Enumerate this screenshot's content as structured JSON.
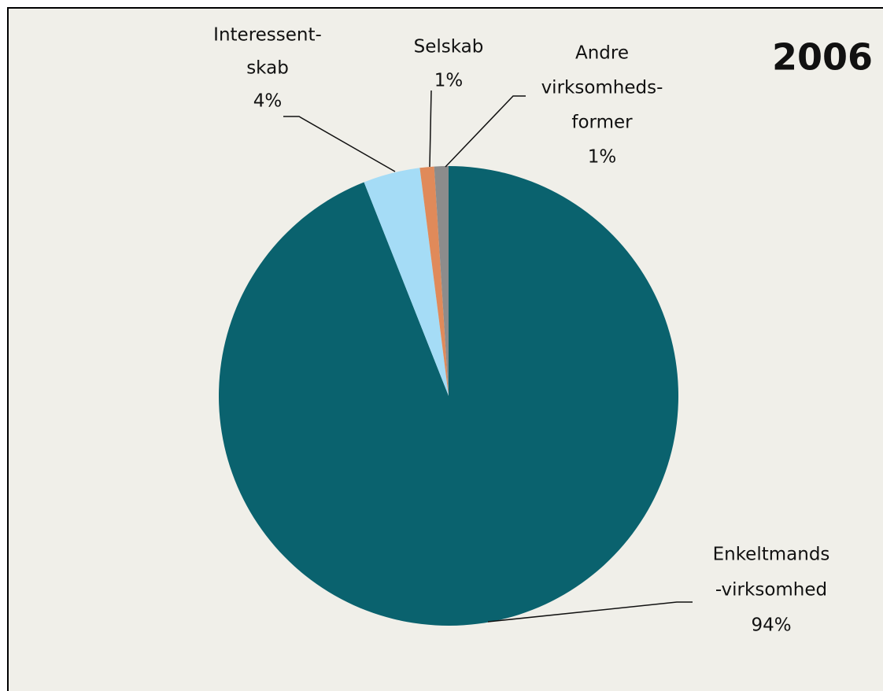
{
  "chart_data": {
    "type": "pie",
    "title": "2006",
    "categories": [
      [
        "Enkeltmands",
        "-virksomhed"
      ],
      [
        "Interessent-",
        "skab"
      ],
      [
        "Selskab"
      ],
      [
        "Andre",
        "virksomheds-",
        "former"
      ]
    ],
    "values": [
      94,
      4,
      1,
      1
    ],
    "value_labels": [
      "94%",
      "4%",
      "1%",
      "1%"
    ],
    "colors": [
      "#0a626e",
      "#a5dcf6",
      "#e08a5a",
      "#8c8c8c"
    ]
  }
}
